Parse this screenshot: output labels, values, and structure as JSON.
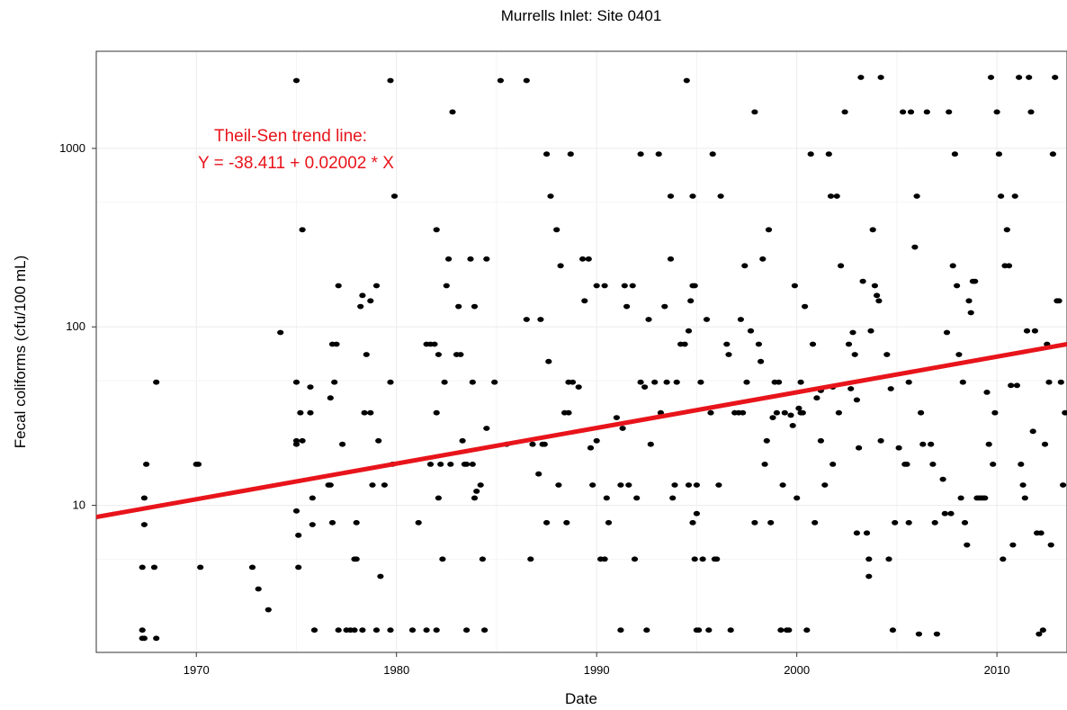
{
  "chart_data": {
    "type": "scatter",
    "title": "Murrells Inlet: Site 0401",
    "xlabel": "Date",
    "ylabel": "Fecal coliforms (cfu/100 mL)",
    "x_scale": "date",
    "y_scale": "log",
    "xlim": [
      1965.0,
      2013.5
    ],
    "ylim": [
      1.5,
      3500
    ],
    "x_ticks": [
      1970,
      1980,
      1990,
      2000,
      2010
    ],
    "x_tick_labels": [
      "1970",
      "1980",
      "1990",
      "2000",
      "2010"
    ],
    "y_ticks": [
      10,
      100,
      1000
    ],
    "y_tick_labels": [
      "10",
      "100",
      "1000"
    ],
    "grid": true,
    "point_color": "#000000",
    "trend_color": "#e8141b",
    "annotation": {
      "line1": "Theil-Sen trend line:",
      "line2": "Y = -38.411 + 0.02002 * X"
    },
    "trend_line": {
      "x": [
        1965.0,
        2013.5
      ],
      "y": [
        8.6,
        80
      ]
    },
    "points": [
      [
        1967.3,
        1.8
      ],
      [
        1967.4,
        1.8
      ],
      [
        1967.3,
        2.0
      ],
      [
        1967.3,
        4.5
      ],
      [
        1967.4,
        7.8
      ],
      [
        1967.4,
        11
      ],
      [
        1967.5,
        17
      ],
      [
        1967.9,
        4.5
      ],
      [
        1968.0,
        49
      ],
      [
        1968.0,
        1.8
      ],
      [
        1970.0,
        17
      ],
      [
        1970.1,
        17
      ],
      [
        1970.2,
        4.5
      ],
      [
        1972.8,
        4.5
      ],
      [
        1973.1,
        3.4
      ],
      [
        1973.6,
        2.6
      ],
      [
        1974.2,
        93
      ],
      [
        1975.0,
        2400
      ],
      [
        1975.0,
        49
      ],
      [
        1975.0,
        23
      ],
      [
        1975.0,
        22
      ],
      [
        1975.0,
        9.3
      ],
      [
        1975.1,
        4.5
      ],
      [
        1975.1,
        6.8
      ],
      [
        1975.2,
        33
      ],
      [
        1975.3,
        350
      ],
      [
        1975.3,
        23
      ],
      [
        1975.7,
        46
      ],
      [
        1975.7,
        33
      ],
      [
        1975.8,
        7.8
      ],
      [
        1975.8,
        11
      ],
      [
        1975.9,
        2.0
      ],
      [
        1976.6,
        13
      ],
      [
        1976.7,
        13
      ],
      [
        1976.7,
        40
      ],
      [
        1976.8,
        80
      ],
      [
        1976.8,
        8
      ],
      [
        1976.9,
        49
      ],
      [
        1977.0,
        80
      ],
      [
        1977.1,
        2.0
      ],
      [
        1977.1,
        170
      ],
      [
        1977.3,
        22
      ],
      [
        1977.5,
        2.0
      ],
      [
        1977.7,
        2.0
      ],
      [
        1977.9,
        2.0
      ],
      [
        1977.9,
        5.0
      ],
      [
        1978.0,
        8
      ],
      [
        1978.0,
        5.0
      ],
      [
        1978.2,
        130
      ],
      [
        1978.3,
        150
      ],
      [
        1978.3,
        2.0
      ],
      [
        1978.4,
        33
      ],
      [
        1978.5,
        70
      ],
      [
        1978.7,
        140
      ],
      [
        1978.7,
        33
      ],
      [
        1978.8,
        13
      ],
      [
        1979.0,
        170
      ],
      [
        1979.0,
        2.0
      ],
      [
        1979.1,
        23
      ],
      [
        1979.2,
        4.0
      ],
      [
        1979.4,
        13
      ],
      [
        1979.7,
        2400
      ],
      [
        1979.7,
        49
      ],
      [
        1979.7,
        2.0
      ],
      [
        1979.8,
        17
      ],
      [
        1979.9,
        540
      ],
      [
        1980.8,
        2.0
      ],
      [
        1981.1,
        8
      ],
      [
        1981.5,
        80
      ],
      [
        1981.5,
        2.0
      ],
      [
        1981.7,
        80
      ],
      [
        1981.7,
        17
      ],
      [
        1981.9,
        80
      ],
      [
        1982.0,
        2.0
      ],
      [
        1982.0,
        350
      ],
      [
        1982.0,
        33
      ],
      [
        1982.1,
        11
      ],
      [
        1982.1,
        70
      ],
      [
        1982.2,
        17
      ],
      [
        1982.3,
        5.0
      ],
      [
        1982.4,
        49
      ],
      [
        1982.5,
        170
      ],
      [
        1982.6,
        240
      ],
      [
        1982.7,
        17
      ],
      [
        1982.8,
        1600
      ],
      [
        1983.0,
        70
      ],
      [
        1983.1,
        130
      ],
      [
        1983.2,
        70
      ],
      [
        1983.3,
        23
      ],
      [
        1983.4,
        17
      ],
      [
        1983.5,
        2.0
      ],
      [
        1983.5,
        17
      ],
      [
        1983.7,
        240
      ],
      [
        1983.8,
        17
      ],
      [
        1983.8,
        49
      ],
      [
        1983.9,
        11
      ],
      [
        1983.9,
        130
      ],
      [
        1984.0,
        12
      ],
      [
        1984.2,
        13
      ],
      [
        1984.3,
        5.0
      ],
      [
        1984.4,
        2.0
      ],
      [
        1984.5,
        27
      ],
      [
        1984.5,
        240
      ],
      [
        1984.9,
        49
      ],
      [
        1985.2,
        2400
      ],
      [
        1985.5,
        22
      ],
      [
        1986.5,
        2400
      ],
      [
        1986.5,
        110
      ],
      [
        1986.7,
        5.0
      ],
      [
        1986.8,
        22
      ],
      [
        1987.1,
        15
      ],
      [
        1987.2,
        110
      ],
      [
        1987.3,
        22
      ],
      [
        1987.4,
        22
      ],
      [
        1987.5,
        8
      ],
      [
        1987.5,
        930
      ],
      [
        1987.6,
        64
      ],
      [
        1987.7,
        540
      ],
      [
        1988.0,
        350
      ],
      [
        1988.1,
        13
      ],
      [
        1988.2,
        220
      ],
      [
        1988.4,
        33
      ],
      [
        1988.5,
        8
      ],
      [
        1988.6,
        49
      ],
      [
        1988.6,
        33
      ],
      [
        1988.7,
        930
      ],
      [
        1988.8,
        49
      ],
      [
        1989.1,
        46
      ],
      [
        1989.3,
        240
      ],
      [
        1989.4,
        140
      ],
      [
        1989.6,
        240
      ],
      [
        1989.7,
        21
      ],
      [
        1989.8,
        13
      ],
      [
        1990.0,
        23
      ],
      [
        1990.0,
        170
      ],
      [
        1990.2,
        5.0
      ],
      [
        1990.4,
        5.0
      ],
      [
        1990.4,
        170
      ],
      [
        1990.5,
        11
      ],
      [
        1990.6,
        8
      ],
      [
        1991.0,
        31
      ],
      [
        1991.2,
        13
      ],
      [
        1991.2,
        2.0
      ],
      [
        1991.3,
        27
      ],
      [
        1991.4,
        170
      ],
      [
        1991.5,
        130
      ],
      [
        1991.6,
        13
      ],
      [
        1991.8,
        170
      ],
      [
        1991.9,
        5.0
      ],
      [
        1992.0,
        11
      ],
      [
        1992.2,
        49
      ],
      [
        1992.2,
        930
      ],
      [
        1992.4,
        46
      ],
      [
        1992.5,
        2.0
      ],
      [
        1992.6,
        110
      ],
      [
        1992.7,
        22
      ],
      [
        1992.9,
        49
      ],
      [
        1993.1,
        930
      ],
      [
        1993.2,
        33
      ],
      [
        1993.4,
        130
      ],
      [
        1993.5,
        49
      ],
      [
        1993.7,
        240
      ],
      [
        1993.7,
        540
      ],
      [
        1993.8,
        11
      ],
      [
        1993.9,
        13
      ],
      [
        1994.0,
        49
      ],
      [
        1994.2,
        80
      ],
      [
        1994.4,
        80
      ],
      [
        1994.5,
        2400
      ],
      [
        1994.6,
        95
      ],
      [
        1994.6,
        13
      ],
      [
        1994.7,
        140
      ],
      [
        1994.8,
        8
      ],
      [
        1994.8,
        540
      ],
      [
        1994.8,
        170
      ],
      [
        1994.9,
        170
      ],
      [
        1994.9,
        5.0
      ],
      [
        1995.0,
        2.0
      ],
      [
        1995.0,
        9
      ],
      [
        1995.0,
        13
      ],
      [
        1995.1,
        2.0
      ],
      [
        1995.2,
        49
      ],
      [
        1995.3,
        5.0
      ],
      [
        1995.5,
        110
      ],
      [
        1995.6,
        2.0
      ],
      [
        1995.7,
        33
      ],
      [
        1995.8,
        930
      ],
      [
        1995.9,
        5.0
      ],
      [
        1996.0,
        5.0
      ],
      [
        1996.1,
        13
      ],
      [
        1996.2,
        540
      ],
      [
        1996.5,
        80
      ],
      [
        1996.6,
        70
      ],
      [
        1996.7,
        2.0
      ],
      [
        1996.9,
        33
      ],
      [
        1997.1,
        33
      ],
      [
        1997.2,
        110
      ],
      [
        1997.3,
        33
      ],
      [
        1997.4,
        220
      ],
      [
        1997.5,
        49
      ],
      [
        1997.7,
        95
      ],
      [
        1997.9,
        1600
      ],
      [
        1997.9,
        8
      ],
      [
        1998.1,
        80
      ],
      [
        1998.2,
        64
      ],
      [
        1998.3,
        240
      ],
      [
        1998.4,
        17
      ],
      [
        1998.5,
        23
      ],
      [
        1998.6,
        350
      ],
      [
        1998.7,
        8
      ],
      [
        1998.8,
        31
      ],
      [
        1998.9,
        49
      ],
      [
        1999.0,
        33
      ],
      [
        1999.1,
        49
      ],
      [
        1999.2,
        2.0
      ],
      [
        1999.3,
        13
      ],
      [
        1999.4,
        33
      ],
      [
        1999.5,
        2.0
      ],
      [
        1999.6,
        2.0
      ],
      [
        1999.7,
        32
      ],
      [
        1999.8,
        28
      ],
      [
        1999.9,
        170
      ],
      [
        2000.0,
        11
      ],
      [
        2000.1,
        35
      ],
      [
        2000.2,
        33
      ],
      [
        2000.2,
        49
      ],
      [
        2000.3,
        33
      ],
      [
        2000.4,
        130
      ],
      [
        2000.5,
        2.0
      ],
      [
        2000.7,
        930
      ],
      [
        2000.8,
        80
      ],
      [
        2000.9,
        8
      ],
      [
        2001.0,
        40
      ],
      [
        2001.2,
        23
      ],
      [
        2001.2,
        44
      ],
      [
        2001.4,
        13
      ],
      [
        2001.6,
        930
      ],
      [
        2001.7,
        540
      ],
      [
        2001.8,
        17
      ],
      [
        2001.8,
        46
      ],
      [
        2002.0,
        540
      ],
      [
        2002.1,
        33
      ],
      [
        2002.2,
        220
      ],
      [
        2002.4,
        1600
      ],
      [
        2002.6,
        80
      ],
      [
        2002.7,
        45
      ],
      [
        2002.8,
        93
      ],
      [
        2002.9,
        70
      ],
      [
        2003.0,
        7
      ],
      [
        2003.0,
        39
      ],
      [
        2003.1,
        21
      ],
      [
        2003.2,
        2500
      ],
      [
        2003.3,
        180
      ],
      [
        2003.5,
        7
      ],
      [
        2003.6,
        4.0
      ],
      [
        2003.6,
        5.0
      ],
      [
        2003.7,
        95
      ],
      [
        2003.8,
        350
      ],
      [
        2003.9,
        170
      ],
      [
        2004.0,
        150
      ],
      [
        2004.1,
        140
      ],
      [
        2004.2,
        23
      ],
      [
        2004.2,
        2500
      ],
      [
        2004.5,
        70
      ],
      [
        2004.6,
        5.0
      ],
      [
        2004.7,
        45
      ],
      [
        2004.8,
        2.0
      ],
      [
        2004.9,
        8
      ],
      [
        2005.1,
        21
      ],
      [
        2005.3,
        1600
      ],
      [
        2005.4,
        17
      ],
      [
        2005.5,
        17
      ],
      [
        2005.6,
        8
      ],
      [
        2005.6,
        49
      ],
      [
        2005.7,
        1600
      ],
      [
        2005.9,
        280
      ],
      [
        2006.0,
        540
      ],
      [
        2006.1,
        1.9
      ],
      [
        2006.2,
        33
      ],
      [
        2006.3,
        22
      ],
      [
        2006.5,
        1600
      ],
      [
        2006.7,
        22
      ],
      [
        2006.8,
        17
      ],
      [
        2006.9,
        8
      ],
      [
        2007.0,
        1.9
      ],
      [
        2007.3,
        14
      ],
      [
        2007.4,
        9
      ],
      [
        2007.5,
        93
      ],
      [
        2007.6,
        1600
      ],
      [
        2007.7,
        9
      ],
      [
        2007.8,
        220
      ],
      [
        2007.9,
        930
      ],
      [
        2008.0,
        170
      ],
      [
        2008.1,
        70
      ],
      [
        2008.2,
        11
      ],
      [
        2008.3,
        49
      ],
      [
        2008.4,
        8
      ],
      [
        2008.5,
        6
      ],
      [
        2008.6,
        140
      ],
      [
        2008.7,
        120
      ],
      [
        2008.8,
        180
      ],
      [
        2008.9,
        180
      ],
      [
        2009.0,
        11
      ],
      [
        2009.1,
        11
      ],
      [
        2009.2,
        11
      ],
      [
        2009.3,
        11
      ],
      [
        2009.4,
        11
      ],
      [
        2009.5,
        43
      ],
      [
        2009.6,
        22
      ],
      [
        2009.7,
        2500
      ],
      [
        2009.8,
        17
      ],
      [
        2009.9,
        33
      ],
      [
        2010.0,
        1600
      ],
      [
        2010.1,
        930
      ],
      [
        2010.2,
        540
      ],
      [
        2010.3,
        5.0
      ],
      [
        2010.4,
        220
      ],
      [
        2010.5,
        350
      ],
      [
        2010.6,
        220
      ],
      [
        2010.7,
        47
      ],
      [
        2010.8,
        6
      ],
      [
        2010.9,
        540
      ],
      [
        2011.0,
        47
      ],
      [
        2011.1,
        2500
      ],
      [
        2011.2,
        17
      ],
      [
        2011.3,
        13
      ],
      [
        2011.4,
        11
      ],
      [
        2011.5,
        95
      ],
      [
        2011.6,
        2500
      ],
      [
        2011.7,
        1600
      ],
      [
        2011.8,
        26
      ],
      [
        2011.9,
        95
      ],
      [
        2012.0,
        7
      ],
      [
        2012.1,
        1.9
      ],
      [
        2012.2,
        7
      ],
      [
        2012.3,
        2.0
      ],
      [
        2012.4,
        22
      ],
      [
        2012.5,
        80
      ],
      [
        2012.6,
        49
      ],
      [
        2012.7,
        6
      ],
      [
        2012.8,
        930
      ],
      [
        2012.9,
        2500
      ],
      [
        2013.0,
        140
      ],
      [
        2013.1,
        140
      ],
      [
        2013.2,
        49
      ],
      [
        2013.3,
        13
      ],
      [
        2013.4,
        33
      ]
    ]
  }
}
